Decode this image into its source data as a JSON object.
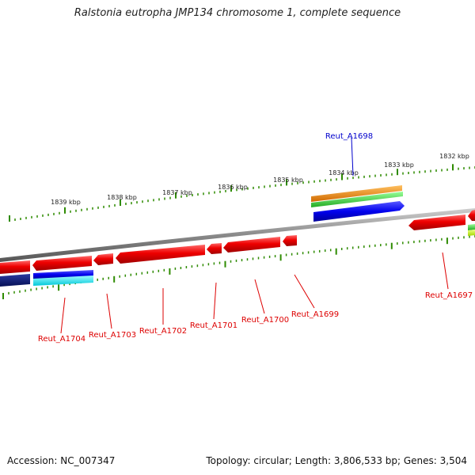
{
  "title": "Ralstonia eutropha JMP134 chromosome 1, complete sequence",
  "footer": {
    "accession": "Accession: NC_007347",
    "summary": "Topology: circular; Length: 3,806,533 bp; Genes: 3,504"
  },
  "colors": {
    "backbone": "#8a8a8a",
    "tick": "#2e8b00",
    "forward_gene": "#ee0000",
    "blue_gene": "#0000ee",
    "navy_gene": "#0a1a7a",
    "cyan_gene": "#00d8e8",
    "orange_gene": "#f08a00",
    "green_gene": "#33cc33",
    "red_label": "#dd0000",
    "blue_label": "#0000cc"
  },
  "scale_labels": [
    "1839 kbp",
    "1838 kbp",
    "1837 kbp",
    "1836 kbp",
    "1835 kbp",
    "1834 kbp",
    "1833 kbp",
    "1832 kbp"
  ],
  "gene_labels": [
    {
      "name": "Reut_A1698",
      "color": "blue"
    },
    {
      "name": "Reut_A1697",
      "color": "red"
    },
    {
      "name": "Reut_A1699",
      "color": "red"
    },
    {
      "name": "Reut_A1700",
      "color": "red"
    },
    {
      "name": "Reut_A1701",
      "color": "red"
    },
    {
      "name": "Reut_A1702",
      "color": "red"
    },
    {
      "name": "Reut_A1703",
      "color": "red"
    },
    {
      "name": "Reut_A1704",
      "color": "red"
    }
  ]
}
